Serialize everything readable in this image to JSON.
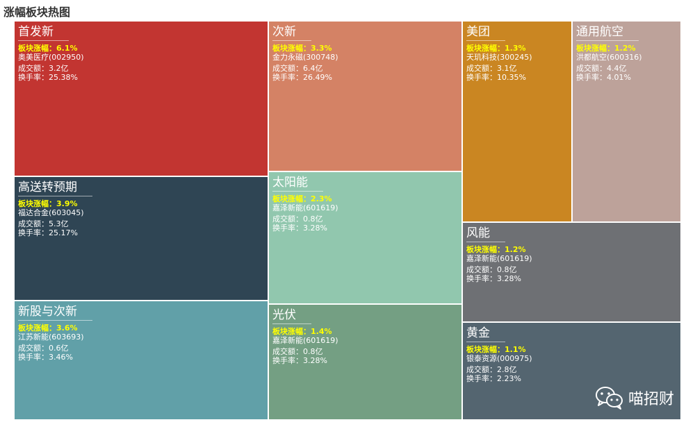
{
  "chart_data": {
    "type": "treemap",
    "title": "涨幅板块热图",
    "label_keys": {
      "change": "板块涨幅：",
      "volume": "成交额：",
      "turnover": "换手率："
    },
    "sectors": [
      {
        "name": "首发新",
        "change": "6.1%",
        "leader": "奥美医疗(002950)",
        "volume": "3.2亿",
        "turnover": "25.38%",
        "color": "#c23531"
      },
      {
        "name": "高送转预期",
        "change": "3.9%",
        "leader": "福达合金(603045)",
        "volume": "5.3亿",
        "turnover": "25.17%",
        "color": "#2f4554"
      },
      {
        "name": "新股与次新",
        "change": "3.6%",
        "leader": "江苏新能(603693)",
        "volume": "0.6亿",
        "turnover": "3.46%",
        "color": "#61a0a8"
      },
      {
        "name": "次新",
        "change": "3.3%",
        "leader": "金力永磁(300748)",
        "volume": "6.4亿",
        "turnover": "26.49%",
        "color": "#d48265"
      },
      {
        "name": "太阳能",
        "change": "2.3%",
        "leader": "嘉泽新能(601619)",
        "volume": "0.8亿",
        "turnover": "3.28%",
        "color": "#91c7ae"
      },
      {
        "name": "光伏",
        "change": "1.4%",
        "leader": "嘉泽新能(601619)",
        "volume": "0.8亿",
        "turnover": "3.28%",
        "color": "#749f83"
      },
      {
        "name": "美团",
        "change": "1.3%",
        "leader": "天玑科技(300245)",
        "volume": "3.1亿",
        "turnover": "10.35%",
        "color": "#ca8622"
      },
      {
        "name": "通用航空",
        "change": "1.2%",
        "leader": "洪都航空(600316)",
        "volume": "4.4亿",
        "turnover": "4.01%",
        "color": "#bda29a"
      },
      {
        "name": "风能",
        "change": "1.2%",
        "leader": "嘉泽新能(601619)",
        "volume": "0.8亿",
        "turnover": "3.28%",
        "color": "#6e7074"
      },
      {
        "name": "黄金",
        "change": "1.1%",
        "leader": "银泰资源(000975)",
        "volume": "2.8亿",
        "turnover": "2.23%",
        "color": "#546570"
      }
    ]
  },
  "watermark": {
    "text": "喵招财",
    "icon": "wechat-icon"
  }
}
